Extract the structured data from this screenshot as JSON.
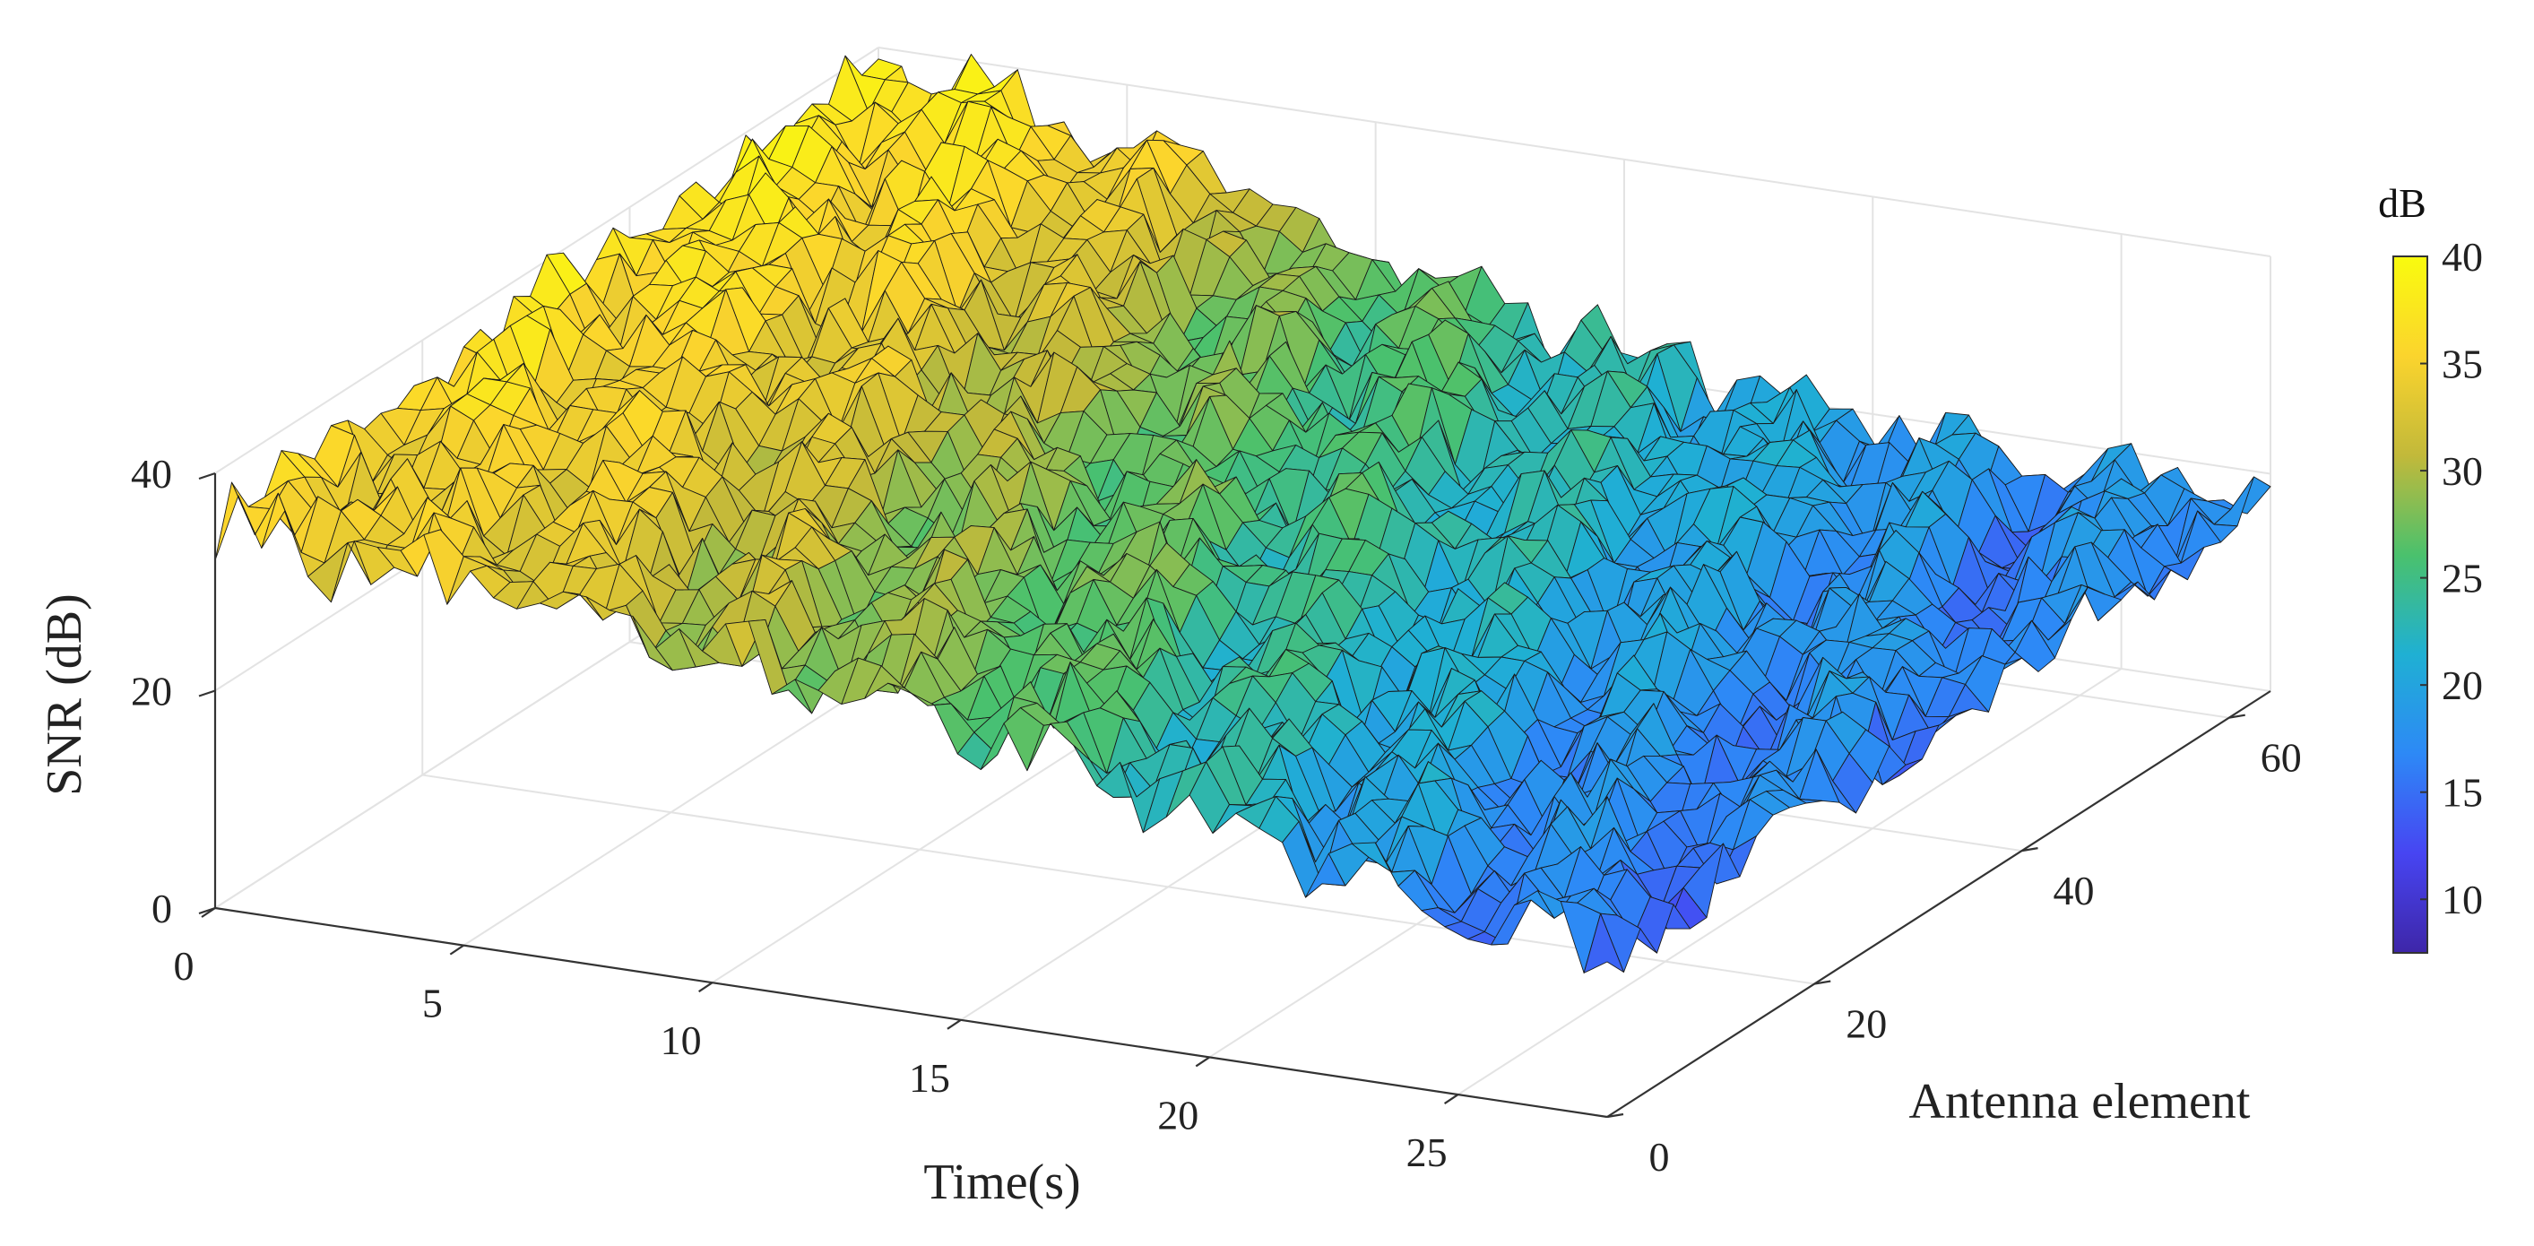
{
  "chart_data": {
    "type": "surface",
    "title": "",
    "xlabel": "Time(s)",
    "ylabel": "Antenna element",
    "zlabel": "SNR (dB)",
    "xlim": [
      0,
      28
    ],
    "ylim": [
      0,
      64
    ],
    "zlim": [
      0,
      40
    ],
    "x_ticks": [
      "0",
      "5",
      "10",
      "15",
      "20",
      "25"
    ],
    "y_ticks": [
      "0",
      "20",
      "40",
      "60"
    ],
    "z_ticks": [
      "0",
      "20",
      "40"
    ],
    "grid": true,
    "colormap": "parula",
    "colorbar": {
      "title": "dB",
      "range": [
        7.5,
        40
      ],
      "ticks": [
        "10",
        "15",
        "20",
        "25",
        "30",
        "35",
        "40"
      ],
      "colors": [
        "#3e26a8",
        "#4745f2",
        "#2d89f6",
        "#1fb0d3",
        "#4ac16d",
        "#c2b93a",
        "#fbd42d",
        "#f9fb0e"
      ]
    },
    "surface": {
      "description_x": "Time(s)",
      "description_y": "Antenna element",
      "mean_snr_at_time_s": {
        "x": [
          0,
          5,
          10,
          15,
          20,
          25,
          28
        ],
        "z_at_antenna_0": [
          35,
          33,
          30,
          27,
          22,
          17,
          15
        ],
        "z_at_antenna_64": [
          38,
          35,
          27,
          23,
          19,
          17,
          18
        ]
      }
    }
  }
}
